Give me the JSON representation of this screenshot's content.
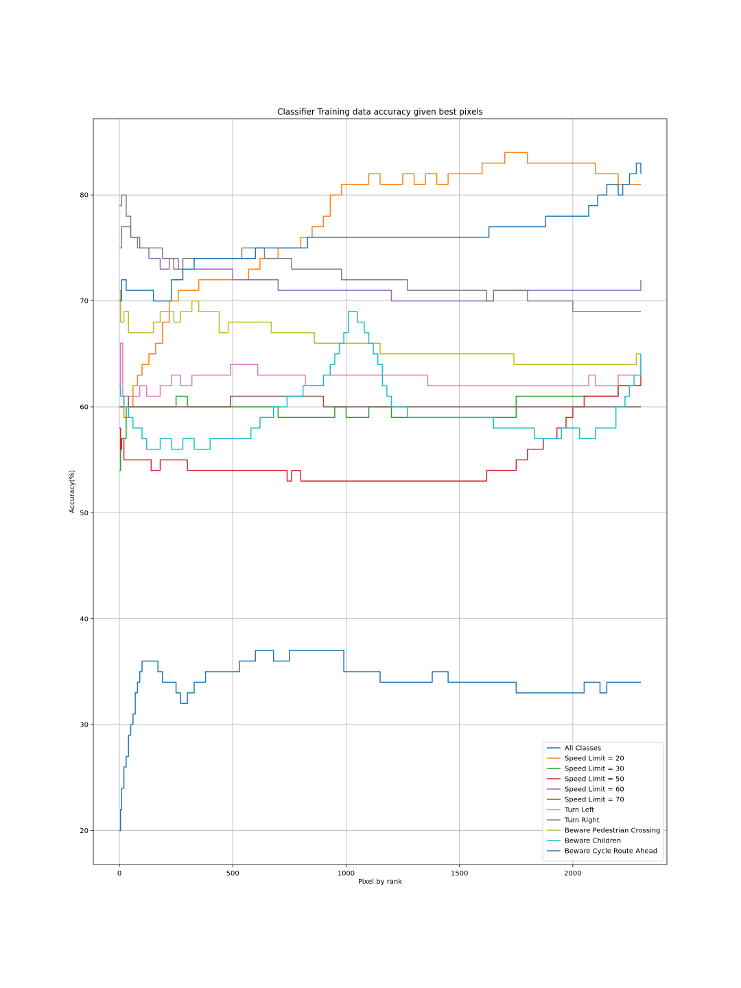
{
  "chart_data": {
    "type": "line",
    "title": "Classifier Training data accuracy given best pixels",
    "xlabel": "Pixel by rank",
    "ylabel": "Accuracy(%)",
    "xlim": [
      -115,
      2415
    ],
    "ylim": [
      16.8,
      87.2
    ],
    "xticks": [
      0,
      500,
      1000,
      1500,
      2000
    ],
    "yticks": [
      20,
      30,
      40,
      50,
      60,
      70,
      80
    ],
    "grid": true,
    "legend_position": "lower-right",
    "series": [
      {
        "name": "All Classes",
        "color": "#1f77b4",
        "x": [
          0,
          5,
          10,
          20,
          30,
          40,
          50,
          60,
          70,
          80,
          90,
          100,
          110,
          170,
          190,
          230,
          250,
          270,
          300,
          330,
          380,
          480,
          530,
          600,
          680,
          750,
          800,
          940,
          990,
          1100,
          1150,
          1240,
          1380,
          1450,
          1600,
          1650,
          1750,
          2000,
          2050,
          2120,
          2150,
          2300
        ],
        "y": [
          20,
          22,
          24,
          26,
          27,
          29,
          30,
          31,
          33,
          34,
          35,
          36,
          36,
          35,
          34,
          34,
          33,
          32,
          33,
          34,
          35,
          35,
          36,
          37,
          36,
          37,
          37,
          37,
          35,
          35,
          34,
          34,
          35,
          34,
          34,
          34,
          33,
          33,
          34,
          33,
          34,
          34
        ]
      },
      {
        "name": "Speed Limit = 20",
        "color": "#ff7f0e",
        "x": [
          0,
          20,
          40,
          60,
          80,
          100,
          130,
          160,
          190,
          220,
          260,
          300,
          350,
          400,
          500,
          570,
          620,
          700,
          800,
          850,
          900,
          930,
          960,
          980,
          1000,
          1100,
          1150,
          1200,
          1250,
          1300,
          1350,
          1400,
          1450,
          1500,
          1550,
          1600,
          1650,
          1700,
          1750,
          1800,
          2050,
          2100,
          2150,
          2200,
          2250,
          2300
        ],
        "y": [
          60,
          59,
          60,
          62,
          63,
          64,
          65,
          66,
          68,
          70,
          71,
          71,
          72,
          72,
          72,
          73,
          74,
          75,
          76,
          77,
          78,
          80,
          80,
          81,
          81,
          82,
          81,
          81,
          82,
          81,
          82,
          81,
          82,
          82,
          82,
          83,
          83,
          84,
          84,
          83,
          83,
          82,
          82,
          81,
          81,
          81
        ]
      },
      {
        "name": "Speed Limit = 30",
        "color": "#2ca02c",
        "x": [
          0,
          5,
          30,
          60,
          100,
          150,
          200,
          250,
          300,
          400,
          560,
          700,
          900,
          950,
          1000,
          1100,
          1200,
          1400,
          1700,
          1750,
          2000,
          2200,
          2300
        ],
        "y": [
          54,
          57,
          60,
          60,
          60,
          60,
          60,
          61,
          60,
          60,
          60,
          59,
          59,
          60,
          59,
          60,
          59,
          59,
          59,
          61,
          61,
          62,
          62
        ]
      },
      {
        "name": "Speed Limit = 50",
        "color": "#d62728",
        "x": [
          0,
          5,
          10,
          20,
          100,
          140,
          180,
          220,
          260,
          300,
          350,
          500,
          740,
          760,
          800,
          1000,
          1200,
          1400,
          1620,
          1700,
          1750,
          1800,
          1870,
          1930,
          1970,
          2000,
          2050,
          2100,
          2200,
          2250,
          2300
        ],
        "y": [
          58,
          56,
          57,
          55,
          55,
          54,
          55,
          55,
          55,
          54,
          54,
          54,
          53,
          54,
          53,
          53,
          53,
          53,
          54,
          54,
          55,
          56,
          57,
          58,
          59,
          60,
          61,
          61,
          62,
          62,
          63
        ]
      },
      {
        "name": "Speed Limit = 60",
        "color": "#9467bd",
        "x": [
          0,
          10,
          50,
          80,
          130,
          180,
          220,
          260,
          300,
          450,
          500,
          650,
          700,
          800,
          1000,
          1200,
          1400,
          1500,
          1600,
          1650,
          2000,
          2200,
          2300
        ],
        "y": [
          75,
          77,
          76,
          75,
          74,
          73,
          74,
          73,
          73,
          73,
          72,
          72,
          71,
          71,
          71,
          70,
          70,
          70,
          70,
          71,
          71,
          71,
          72
        ]
      },
      {
        "name": "Speed Limit = 70",
        "color": "#8c564b",
        "x": [
          0,
          10,
          20,
          40,
          60,
          100,
          200,
          300,
          400,
          490,
          600,
          890,
          900,
          1200,
          1500,
          1800,
          2100,
          2200,
          2300
        ],
        "y": [
          60,
          60,
          61,
          60,
          60,
          60,
          60,
          60,
          60,
          61,
          61,
          61,
          60,
          60,
          60,
          60,
          60,
          60,
          60
        ]
      },
      {
        "name": "Turn Left",
        "color": "#e377c2",
        "x": [
          0,
          5,
          15,
          30,
          60,
          90,
          120,
          180,
          230,
          270,
          320,
          380,
          490,
          610,
          700,
          820,
          900,
          1200,
          1300,
          1360,
          1500,
          1700,
          1800,
          2000,
          2070,
          2100,
          2200,
          2250,
          2300
        ],
        "y": [
          62,
          66,
          61,
          61,
          61,
          62,
          61,
          62,
          63,
          62,
          63,
          63,
          64,
          63,
          63,
          62,
          63,
          63,
          63,
          62,
          62,
          62,
          62,
          62,
          63,
          62,
          63,
          63,
          65
        ]
      },
      {
        "name": "Turn Right",
        "color": "#7f7f7f",
        "x": [
          0,
          10,
          30,
          50,
          90,
          120,
          190,
          240,
          280,
          320,
          370,
          470,
          540,
          640,
          700,
          760,
          980,
          1100,
          1270,
          1400,
          1620,
          1650,
          1800,
          2000,
          2300
        ],
        "y": [
          79,
          80,
          78,
          76,
          75,
          75,
          74,
          73,
          74,
          74,
          74,
          74,
          75,
          74,
          74,
          73,
          72,
          72,
          71,
          71,
          70,
          71,
          70,
          69,
          69
        ]
      },
      {
        "name": "Beware Pedestrian Crossing",
        "color": "#bcbd22",
        "x": [
          0,
          5,
          20,
          40,
          70,
          100,
          150,
          180,
          240,
          270,
          320,
          350,
          440,
          480,
          570,
          670,
          770,
          860,
          1000,
          1100,
          1150,
          1300,
          1500,
          1740,
          1900,
          2100,
          2280,
          2300
        ],
        "y": [
          71,
          68,
          69,
          67,
          67,
          67,
          68,
          69,
          68,
          69,
          70,
          69,
          67,
          68,
          68,
          67,
          67,
          66,
          66,
          66,
          65,
          65,
          65,
          64,
          64,
          64,
          65,
          65
        ]
      },
      {
        "name": "Beware Children",
        "color": "#17becf",
        "x": [
          0,
          5,
          20,
          40,
          60,
          80,
          100,
          120,
          180,
          230,
          280,
          330,
          400,
          450,
          580,
          620,
          680,
          740,
          810,
          900,
          930,
          950,
          970,
          990,
          1010,
          1050,
          1080,
          1100,
          1120,
          1140,
          1160,
          1180,
          1200,
          1270,
          1400,
          1500,
          1650,
          1830,
          1950,
          2030,
          2100,
          2190,
          2230,
          2250,
          2270,
          2300
        ],
        "y": [
          62,
          61,
          60,
          59,
          58,
          58,
          57,
          56,
          57,
          56,
          57,
          56,
          57,
          57,
          58,
          59,
          60,
          61,
          62,
          63,
          64,
          65,
          66,
          67,
          69,
          68,
          67,
          66,
          65,
          64,
          62,
          61,
          60,
          59,
          59,
          59,
          58,
          57,
          58,
          57,
          58,
          60,
          61,
          62,
          63,
          65
        ]
      },
      {
        "name": "Beware Cycle Route Ahead",
        "color": "#1f77b4",
        "x": [
          0,
          10,
          30,
          50,
          80,
          150,
          230,
          280,
          330,
          480,
          600,
          790,
          830,
          1200,
          1630,
          1880,
          2070,
          2110,
          2150,
          2200,
          2220,
          2250,
          2280,
          2300
        ],
        "y": [
          70,
          72,
          71,
          71,
          71,
          70,
          72,
          73,
          74,
          74,
          75,
          75,
          76,
          76,
          77,
          78,
          79,
          80,
          81,
          80,
          81,
          82,
          83,
          82
        ]
      }
    ]
  }
}
